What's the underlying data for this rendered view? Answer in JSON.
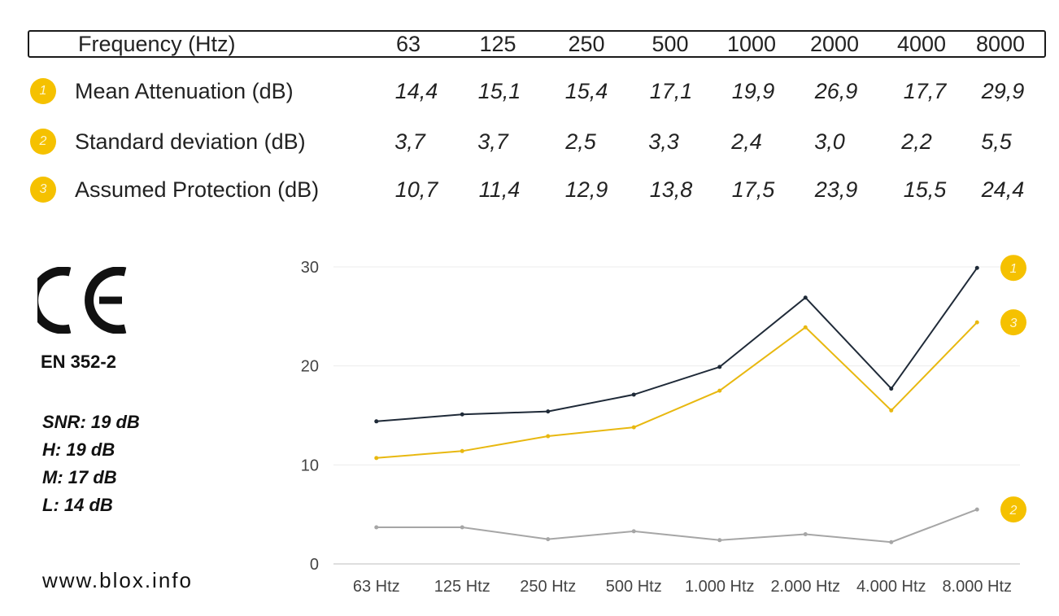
{
  "table": {
    "header_label": "Frequency (Htz)",
    "frequencies": [
      "63",
      "125",
      "250",
      "500",
      "1000",
      "2000",
      "4000",
      "8000"
    ],
    "rows": [
      {
        "badge": "1",
        "label": "Mean Attenuation (dB)",
        "values": [
          "14,4",
          "15,1",
          "15,4",
          "17,1",
          "19,9",
          "26,9",
          "17,7",
          "29,9"
        ]
      },
      {
        "badge": "2",
        "label": "Standard deviation (dB)",
        "values": [
          "3,7",
          "3,7",
          "2,5",
          "3,3",
          "2,4",
          "3,0",
          "2,2",
          "5,5"
        ]
      },
      {
        "badge": "3",
        "label": "Assumed Protection (dB)",
        "values": [
          "10,7",
          "11,4",
          "12,9",
          "13,8",
          "17,5",
          "23,9",
          "15,5",
          "24,4"
        ]
      }
    ]
  },
  "sidebar": {
    "logo": "CE",
    "standard": "EN 352-2",
    "ratings": [
      "SNR: 19 dB",
      "H: 19 dB",
      "M: 17 dB",
      "L: 14 dB"
    ],
    "website": "www.blox.info"
  },
  "chart_data": {
    "type": "line",
    "categories": [
      "63 Htz",
      "125 Htz",
      "250 Htz",
      "500 Htz",
      "1.000 Htz",
      "2.000 Htz",
      "4.000 Htz",
      "8.000 Htz"
    ],
    "ylim": [
      0,
      30
    ],
    "yticks": [
      "0",
      "10",
      "20",
      "30"
    ],
    "grid": true,
    "series": [
      {
        "name": "1",
        "color": "#1f2a38",
        "values": [
          14.4,
          15.1,
          15.4,
          17.1,
          19.9,
          26.9,
          17.7,
          29.9
        ]
      },
      {
        "name": "2",
        "color": "#a6a6a6",
        "values": [
          3.7,
          3.7,
          2.5,
          3.3,
          2.4,
          3.0,
          2.2,
          5.5
        ]
      },
      {
        "name": "3",
        "color": "#e8b810",
        "values": [
          10.7,
          11.4,
          12.9,
          13.8,
          17.5,
          23.9,
          15.5,
          24.4
        ]
      }
    ],
    "badge_color": "#f5c100"
  }
}
